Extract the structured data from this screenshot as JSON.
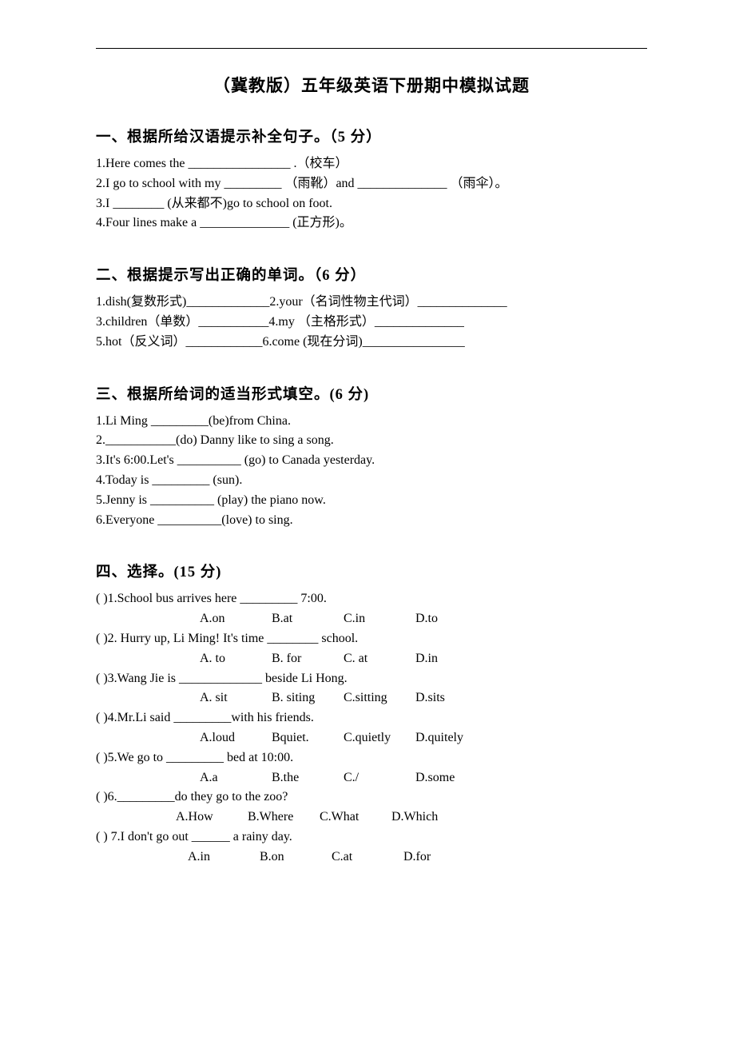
{
  "title": "（冀教版）五年级英语下册期中模拟试题",
  "sections": {
    "s1": {
      "head": "一、根据所给汉语提示补全句子。（5 分）",
      "lines": [
        "1.Here comes the  ________________ .（校车）",
        "2.I go to school with my  _________  （雨靴）and  ______________ （雨伞）。",
        "3.I  ________  (从来都不)go to school on foot.",
        "4.Four lines make a  ______________  (正方形)。"
      ]
    },
    "s2": {
      "head": "二、根据提示写出正确的单词。（6 分）",
      "lines": [
        "1.dish(复数形式)_____________2.your（名词性物主代词）______________",
        "3.children（单数）___________4.my （主格形式）______________",
        "5.hot（反义词）____________6.come (现在分词)________________"
      ]
    },
    "s3": {
      "head": "三、根据所给词的适当形式填空。(6 分)",
      "lines": [
        "1.Li Ming  _________(be)from China.",
        "2.___________(do) Danny like to sing a song.",
        "3.It's 6:00.Let's  __________  (go) to Canada yesterday.",
        "4.Today is  _________  (sun).",
        "5.Jenny is  __________  (play) the piano now.",
        "6.Everyone  __________(love) to sing."
      ]
    },
    "s4": {
      "head": "四、选择。(15 分)",
      "items": [
        {
          "q": "(          )1.School bus arrives here  _________   7:00.",
          "opts": [
            "A.on",
            "B.at",
            "C.in",
            "D.to"
          ]
        },
        {
          "q": "(          )2. Hurry up, Li Ming! It's time  ________   school.",
          "opts": [
            "A. to",
            "B. for",
            "C. at",
            "D.in"
          ]
        },
        {
          "q": "(          )3.Wang Jie is  _____________  beside Li Hong.",
          "opts": [
            "A. sit",
            "B. siting",
            "C.sitting",
            "D.sits"
          ]
        },
        {
          "q": "(          )4.Mr.Li said  _________with his friends.",
          "opts": [
            "A.loud",
            "Bquiet.",
            "C.quietly",
            "D.quitely"
          ]
        },
        {
          "q": "(          )5.We     go to  _________  bed at 10:00.",
          "opts": [
            "A.a",
            "B.the",
            "C./",
            "D.some"
          ]
        },
        {
          "q": "(          )6._________do they go to the zoo?",
          "opts": [
            "A.How",
            "B.Where",
            "C.What",
            "D.Which"
          ],
          "optIndent": 100
        },
        {
          "q": "  (           ) 7.I don't go out  ______   a rainy day.",
          "opts": [
            "A.in",
            "B.on",
            "C.at",
            "D.for"
          ],
          "optIndent": 115
        }
      ]
    }
  }
}
